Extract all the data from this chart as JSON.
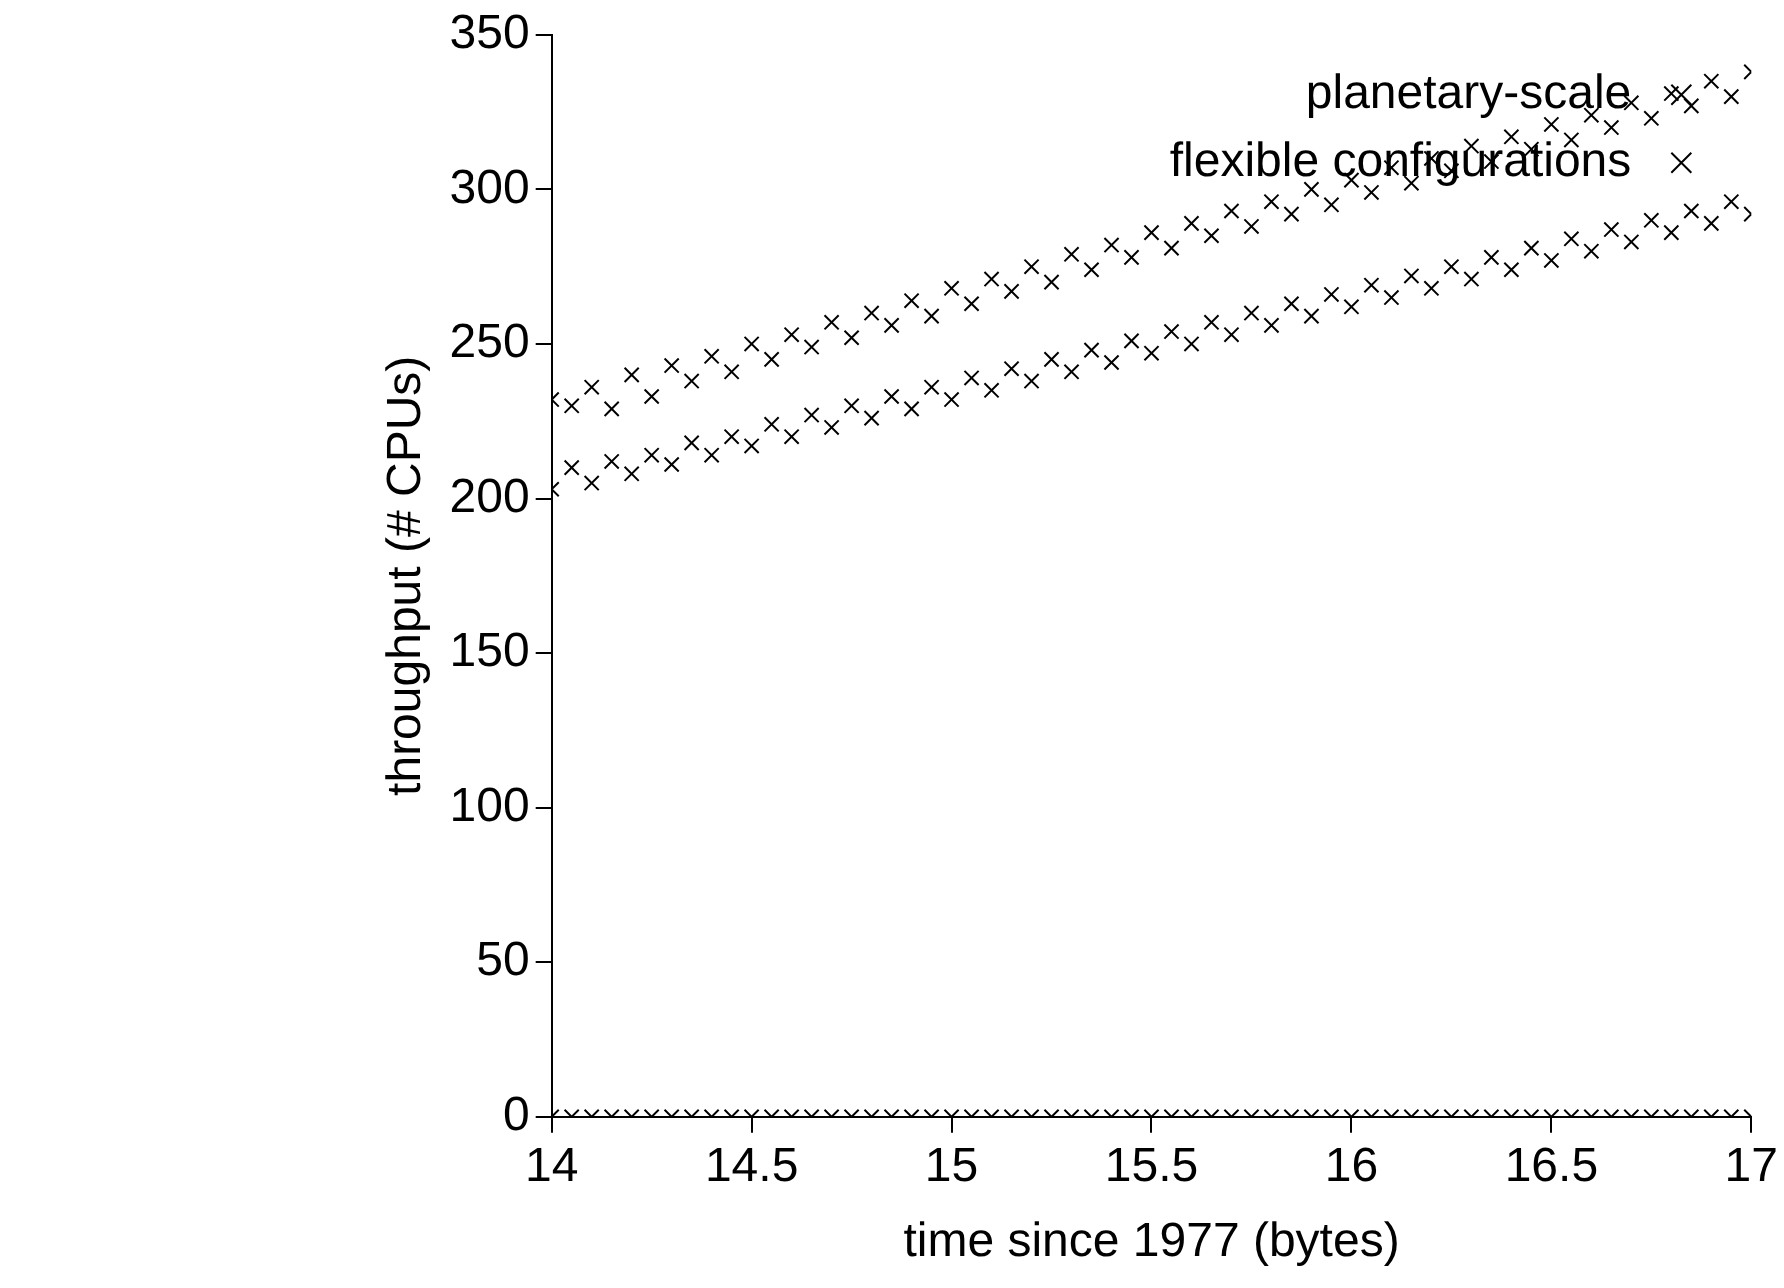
{
  "chart_data": {
    "type": "scatter",
    "xlabel": "time since 1977 (bytes)",
    "ylabel": "throughput (# CPUs)",
    "xlim": [
      14,
      17
    ],
    "xticks": [
      14,
      14.5,
      15,
      15.5,
      16,
      16.5,
      17
    ],
    "ylim": [
      0,
      350
    ],
    "yticks": [
      0,
      50,
      100,
      150,
      200,
      250,
      300,
      350
    ],
    "legend": "top right",
    "marker": "cross",
    "series": [
      {
        "name": "planetary-scale",
        "color": "#000000",
        "x": [
          14,
          14,
          14.05,
          14.05,
          14.1,
          14.1,
          14.15,
          14.15,
          14.2,
          14.2,
          14.25,
          14.25,
          14.3,
          14.3,
          14.35,
          14.35,
          14.4,
          14.4,
          14.45,
          14.45,
          14.5,
          14.5,
          14.55,
          14.55,
          14.6,
          14.6,
          14.65,
          14.65,
          14.7,
          14.7,
          14.75,
          14.75,
          14.8,
          14.8,
          14.85,
          14.85,
          14.9,
          14.9,
          14.95,
          14.95,
          15,
          15,
          15.05,
          15.05,
          15.1,
          15.1,
          15.15,
          15.15,
          15.2,
          15.2,
          15.25,
          15.25,
          15.3,
          15.3,
          15.35,
          15.35,
          15.4,
          15.4,
          15.45,
          15.45,
          15.5,
          15.5,
          15.55,
          15.55,
          15.6,
          15.6,
          15.65,
          15.65,
          15.7,
          15.7,
          15.75,
          15.75,
          15.8,
          15.8,
          15.85,
          15.85,
          15.9,
          15.9,
          15.95,
          15.95,
          16,
          16,
          16.05,
          16.05,
          16.1,
          16.1,
          16.15,
          16.15,
          16.2,
          16.2,
          16.25,
          16.25,
          16.3,
          16.3,
          16.35,
          16.35,
          16.4,
          16.4,
          16.45,
          16.45,
          16.5,
          16.5,
          16.55,
          16.55,
          16.6,
          16.6,
          16.65,
          16.65,
          16.7,
          16.7,
          16.75,
          16.75,
          16.8,
          16.8,
          16.85,
          16.85,
          16.9,
          16.9,
          16.95,
          16.95,
          17,
          17
        ],
        "values": [
          203,
          232,
          210,
          230,
          205,
          236,
          212,
          229,
          208,
          240,
          214,
          233,
          211,
          243,
          218,
          238,
          214,
          246,
          220,
          241,
          217,
          250,
          224,
          245,
          220,
          253,
          227,
          249,
          223,
          257,
          230,
          252,
          226,
          260,
          233,
          256,
          229,
          264,
          236,
          259,
          232,
          268,
          239,
          263,
          235,
          271,
          242,
          267,
          238,
          275,
          245,
          270,
          241,
          279,
          248,
          274,
          244,
          282,
          251,
          278,
          247,
          286,
          254,
          281,
          250,
          289,
          257,
          285,
          253,
          293,
          260,
          288,
          256,
          296,
          263,
          292,
          259,
          300,
          266,
          295,
          262,
          303,
          269,
          299,
          265,
          307,
          272,
          302,
          268,
          310,
          275,
          306,
          271,
          314,
          278,
          309,
          274,
          317,
          281,
          313,
          277,
          321,
          284,
          316,
          280,
          324,
          287,
          320,
          283,
          328,
          290,
          323,
          286,
          331,
          293,
          327,
          289,
          335,
          296,
          330,
          292,
          338
        ]
      },
      {
        "name": "flexible configurations",
        "color": "#000000",
        "x": [
          14,
          14.05,
          14.1,
          14.15,
          14.2,
          14.25,
          14.3,
          14.35,
          14.4,
          14.45,
          14.5,
          14.55,
          14.6,
          14.65,
          14.7,
          14.75,
          14.8,
          14.85,
          14.9,
          14.95,
          15,
          15.05,
          15.1,
          15.15,
          15.2,
          15.25,
          15.3,
          15.35,
          15.4,
          15.45,
          15.5,
          15.55,
          15.6,
          15.65,
          15.7,
          15.75,
          15.8,
          15.85,
          15.9,
          15.95,
          16,
          16.05,
          16.1,
          16.15,
          16.2,
          16.25,
          16.3,
          16.35,
          16.4,
          16.45,
          16.5,
          16.55,
          16.6,
          16.65,
          16.7,
          16.75,
          16.8,
          16.85,
          16.9,
          16.95,
          17
        ],
        "values": [
          0,
          0,
          0,
          0,
          0,
          0,
          0,
          0,
          0,
          0,
          0,
          0,
          0,
          0,
          0,
          0,
          0,
          0,
          0,
          0,
          0,
          0,
          0,
          0,
          0,
          0,
          0,
          0,
          0,
          0,
          0,
          0,
          0,
          0,
          0,
          0,
          0,
          0,
          0,
          0,
          0,
          0,
          0,
          0,
          0,
          0,
          0,
          0,
          0,
          0,
          0,
          0,
          0,
          0,
          0,
          0,
          0,
          0,
          0,
          0,
          0
        ]
      }
    ]
  }
}
